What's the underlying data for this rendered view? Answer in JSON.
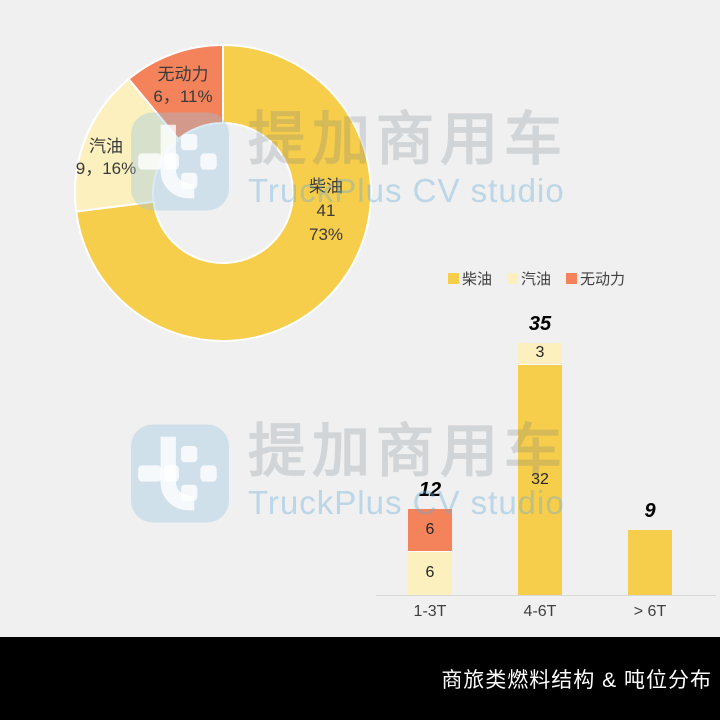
{
  "page": {
    "background": "#F0F0F0"
  },
  "watermark": {
    "brand_cn": "提加商用车",
    "brand_en": "TruckPlus CV studio",
    "logo_color": "#AFCFE4"
  },
  "footer": {
    "title": "商旅类燃料结构 & 吨位分布",
    "background": "#000000",
    "text_color": "#FFFFFF"
  },
  "legend": {
    "items": [
      {
        "label": "柴油",
        "color": "#F7CE4C"
      },
      {
        "label": "汽油",
        "color": "#FBF0BE"
      },
      {
        "label": "无动力",
        "color": "#F4835C"
      }
    ]
  },
  "colors": {
    "diesel": "#F7CE4C",
    "gasoline": "#FBF0BE",
    "nopower": "#F4835C",
    "total_label": "#BE0B1E",
    "axis_line": "#D7D7D7"
  },
  "chart_data": [
    {
      "type": "pie",
      "subtype": "donut",
      "title": "商旅类燃料结构",
      "start_angle_deg": 0,
      "direction": "clockwise",
      "inner_radius_ratio": 0.47,
      "slices": [
        {
          "name": "柴油",
          "value": 41,
          "percent": 73,
          "color": "#F7CE4C",
          "label_lines": [
            "柴油",
            "41",
            "73%"
          ]
        },
        {
          "name": "汽油",
          "value": 9,
          "percent": 16,
          "color": "#FBF0BE",
          "label_lines": [
            "汽油",
            "9，16%"
          ]
        },
        {
          "name": "无动力",
          "value": 6,
          "percent": 11,
          "color": "#F4835C",
          "label_lines": [
            "无动力",
            "6，11%"
          ]
        }
      ]
    },
    {
      "type": "bar",
      "subtype": "stacked",
      "title": "吨位分布",
      "categories": [
        "1-3T",
        "4-6T",
        "> 6T"
      ],
      "series": [
        {
          "name": "柴油",
          "color": "#F7CE4C",
          "values": [
            0,
            32,
            9
          ]
        },
        {
          "name": "汽油",
          "color": "#FBF0BE",
          "values": [
            6,
            3,
            0
          ]
        },
        {
          "name": "无动力",
          "color": "#F4835C",
          "values": [
            6,
            0,
            0
          ]
        }
      ],
      "totals": [
        12,
        35,
        9
      ],
      "ylim": [
        0,
        38
      ],
      "grid": false,
      "legend_position": "top-right",
      "bars": [
        {
          "category": "1-3T",
          "total": "12",
          "segments": [
            {
              "series": "汽油",
              "value": 6,
              "label": "6",
              "color": "#FBF0BE"
            },
            {
              "series": "无动力",
              "value": 6,
              "label": "6",
              "color": "#F4835C"
            }
          ]
        },
        {
          "category": "4-6T",
          "total": "35",
          "segments": [
            {
              "series": "柴油",
              "value": 32,
              "label": "32",
              "color": "#F7CE4C"
            },
            {
              "series": "汽油",
              "value": 3,
              "label": "3",
              "color": "#FBF0BE"
            }
          ]
        },
        {
          "category": "> 6T",
          "total": "9",
          "segments": [
            {
              "series": "柴油",
              "value": 9,
              "label": "",
              "color": "#F7CE4C"
            }
          ]
        }
      ]
    }
  ]
}
